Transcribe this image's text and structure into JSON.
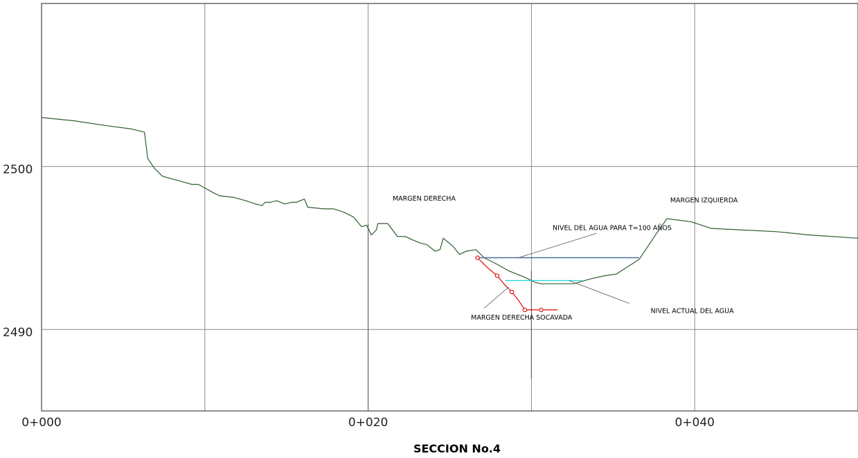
{
  "chart_data": {
    "type": "line",
    "title": "SECCION No.4",
    "x_tick_labels": [
      "0+000",
      "0+020",
      "0+040"
    ],
    "y_tick_labels": [
      "2500",
      "2490"
    ],
    "xlim": [
      0,
      50
    ],
    "ylim": [
      2485,
      2510
    ],
    "grid": true,
    "grid_x": [
      0,
      10,
      20,
      30,
      40,
      50
    ],
    "grid_y": [
      2490,
      2500
    ],
    "colors": {
      "terrain": "#2e5e2e",
      "water_t100": "#4a6fa5",
      "water_actual": "#22d3d3",
      "scour": "#e00000",
      "grid": "#8a8a8a",
      "leader": "#666666"
    },
    "series": [
      {
        "key": "terrain",
        "points": [
          [
            0,
            2503
          ],
          [
            2,
            2502.8
          ],
          [
            4,
            2502.5
          ],
          [
            5.5,
            2502.3
          ],
          [
            6.3,
            2502.1
          ],
          [
            6.5,
            2500.5
          ],
          [
            6.9,
            2499.9
          ],
          [
            7.4,
            2499.4
          ],
          [
            8.5,
            2499.1
          ],
          [
            9.2,
            2498.9
          ],
          [
            9.6,
            2498.9
          ],
          [
            10.5,
            2498.4
          ],
          [
            10.9,
            2498.2
          ],
          [
            11.8,
            2498.1
          ],
          [
            12.5,
            2497.9
          ],
          [
            13.1,
            2497.7
          ],
          [
            13.5,
            2497.6
          ],
          [
            13.7,
            2497.8
          ],
          [
            14.0,
            2497.8
          ],
          [
            14.4,
            2497.9
          ],
          [
            14.9,
            2497.7
          ],
          [
            15.3,
            2497.8
          ],
          [
            15.6,
            2497.8
          ],
          [
            16.1,
            2498.0
          ],
          [
            16.3,
            2497.5
          ],
          [
            17.3,
            2497.4
          ],
          [
            17.9,
            2497.4
          ],
          [
            18.5,
            2497.2
          ],
          [
            19.1,
            2496.9
          ],
          [
            19.6,
            2496.3
          ],
          [
            19.9,
            2496.4
          ],
          [
            20.2,
            2495.8
          ],
          [
            20.5,
            2496.1
          ],
          [
            20.6,
            2496.5
          ],
          [
            21.2,
            2496.5
          ],
          [
            21.5,
            2496.1
          ],
          [
            21.8,
            2495.7
          ],
          [
            22.3,
            2495.7
          ],
          [
            22.7,
            2495.5
          ],
          [
            23.2,
            2495.3
          ],
          [
            23.6,
            2495.2
          ],
          [
            24.1,
            2494.8
          ],
          [
            24.4,
            2494.9
          ],
          [
            24.6,
            2495.6
          ],
          [
            25.2,
            2495.1
          ],
          [
            25.6,
            2494.6
          ],
          [
            26.0,
            2494.8
          ],
          [
            26.6,
            2494.9
          ],
          [
            27.1,
            2494.4
          ],
          [
            27.9,
            2494.0
          ],
          [
            28.6,
            2493.6
          ],
          [
            29.6,
            2493.2
          ],
          [
            30.2,
            2492.9
          ],
          [
            30.6,
            2492.8
          ],
          [
            31.6,
            2492.8
          ],
          [
            32.2,
            2492.8
          ],
          [
            32.6,
            2492.8
          ],
          [
            33.6,
            2493.1
          ],
          [
            34.5,
            2493.3
          ],
          [
            35.2,
            2493.4
          ],
          [
            36.6,
            2494.3
          ],
          [
            37.6,
            2495.8
          ],
          [
            38.3,
            2496.8
          ],
          [
            39.8,
            2496.6
          ],
          [
            41.0,
            2496.2
          ],
          [
            43.0,
            2496.1
          ],
          [
            45.0,
            2496.0
          ],
          [
            47.0,
            2495.8
          ],
          [
            50.0,
            2495.6
          ]
        ]
      },
      {
        "key": "water_t100",
        "points": [
          [
            26.7,
            2494.4
          ],
          [
            36.6,
            2494.4
          ]
        ]
      },
      {
        "key": "water_actual",
        "points": [
          [
            28.4,
            2493.0
          ],
          [
            33.1,
            2493.0
          ]
        ]
      },
      {
        "key": "scour",
        "points": [
          [
            26.7,
            2494.4
          ],
          [
            27.3,
            2493.8
          ],
          [
            27.9,
            2493.3
          ],
          [
            28.4,
            2492.7
          ],
          [
            28.8,
            2492.3
          ],
          [
            29.2,
            2491.8
          ],
          [
            29.6,
            2491.2
          ],
          [
            30.2,
            2491.2
          ],
          [
            30.8,
            2491.2
          ],
          [
            31.6,
            2491.2
          ]
        ],
        "markers": [
          [
            26.7,
            2494.4
          ],
          [
            27.9,
            2493.3
          ],
          [
            28.8,
            2492.3
          ],
          [
            29.6,
            2491.2
          ],
          [
            30.6,
            2491.2
          ]
        ]
      }
    ],
    "vertical_markers": [
      [
        20.0,
        2485
      ],
      [
        30.0,
        2487
      ]
    ],
    "annotations": [
      {
        "key": "margen_derecha",
        "text": "MARGEN DERECHA",
        "x": 21.5,
        "y": 2497.9
      },
      {
        "key": "margen_izquierda",
        "text": "MARGEN IZQUIERDA",
        "x": 38.5,
        "y": 2497.8
      },
      {
        "key": "nivel_t100",
        "text": "NIVEL DEL AGUA PARA T=100 AÑOS",
        "x": 31.3,
        "y": 2496.1,
        "leader": [
          [
            34.0,
            2495.9
          ],
          [
            29.2,
            2494.4
          ]
        ]
      },
      {
        "key": "nivel_actual",
        "text": "NIVEL ACTUAL DEL AGUA",
        "x": 37.3,
        "y": 2491.0,
        "leader": [
          [
            36.0,
            2491.6
          ],
          [
            32.3,
            2493.0
          ]
        ]
      },
      {
        "key": "margen_socavada",
        "text": "MARGEN DERECHA SOCAVADA",
        "x": 26.3,
        "y": 2490.6,
        "leader": [
          [
            27.1,
            2491.3
          ],
          [
            28.6,
            2492.6
          ]
        ]
      }
    ]
  }
}
